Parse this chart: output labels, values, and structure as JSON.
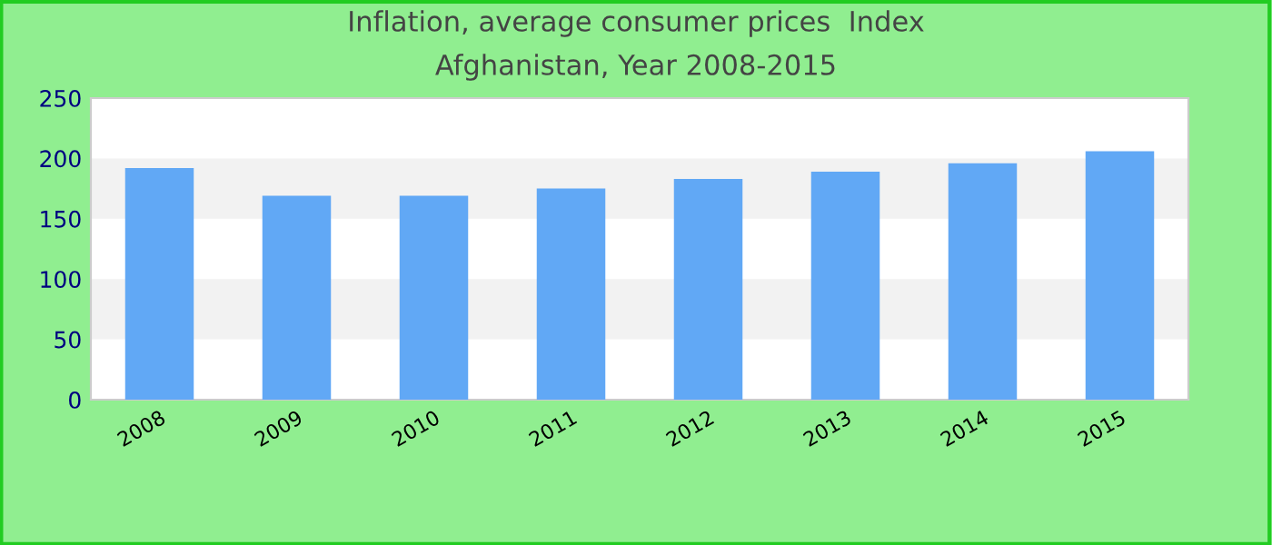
{
  "chart_data": {
    "type": "bar",
    "title": "Inflation, average consumer prices  Index",
    "subtitle": "Afghanistan, Year 2008-2015",
    "categories": [
      "2008",
      "2009",
      "2010",
      "2011",
      "2012",
      "2013",
      "2014",
      "2015"
    ],
    "values": [
      192,
      169,
      169,
      175,
      183,
      189,
      196,
      206
    ],
    "color": "#61a8f5",
    "ylim": [
      0,
      250
    ],
    "yticks": [
      0,
      50,
      100,
      150,
      200,
      250
    ],
    "bands": [
      {
        "axis": "y",
        "from": 50,
        "to": 100,
        "color": "#f2f2f2"
      },
      {
        "axis": "y",
        "from": 150,
        "to": 200,
        "color": "#f2f2f2"
      }
    ]
  }
}
